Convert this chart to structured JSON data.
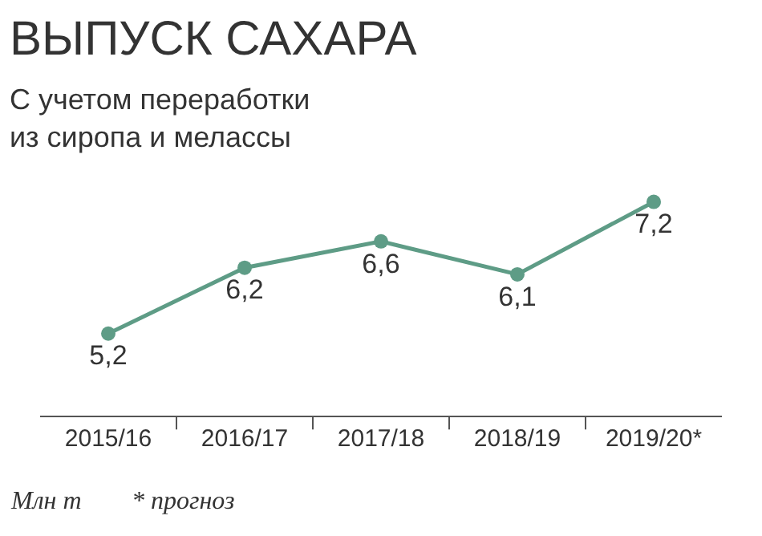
{
  "chart_data": {
    "type": "line",
    "title": "ВЫПУСК САХАРА",
    "subtitle": "С учетом переработки из сиропа и мелассы",
    "categories": [
      "2015/16",
      "2016/17",
      "2017/18",
      "2018/19",
      "2019/20*"
    ],
    "series": [
      {
        "color": "#5e9c86",
        "values": [
          5.2,
          6.2,
          6.6,
          6.1,
          7.2
        ],
        "value_labels": [
          "5,2",
          "6,2",
          "6,6",
          "6,1",
          "7,2"
        ]
      }
    ],
    "tick_labels": "x",
    "marker": "circle",
    "line_style": "solid",
    "annotations": [
      "Млн т",
      "* прогноз"
    ]
  }
}
